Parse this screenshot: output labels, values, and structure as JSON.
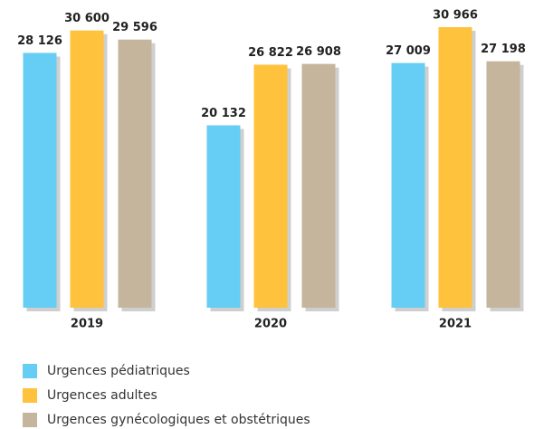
{
  "chart_data": {
    "type": "bar",
    "categories": [
      "2019",
      "2020",
      "2021"
    ],
    "series": [
      {
        "name": "Urgences pédiatriques",
        "color": "#66cef5",
        "values": [
          28126,
          20132,
          27009
        ],
        "value_labels": [
          "28 126",
          "20 132",
          "27 009"
        ]
      },
      {
        "name": "Urgences adultes",
        "color": "#ffc23c",
        "values": [
          30600,
          26822,
          30966
        ],
        "value_labels": [
          "30 600",
          "26 822",
          "30 966"
        ]
      },
      {
        "name": "Urgences gynécologiques et obstétriques",
        "color": "#c4b59c",
        "values": [
          29596,
          26908,
          27198
        ],
        "value_labels": [
          "29 596",
          "26 908",
          "27 198"
        ]
      }
    ],
    "legend": "bottom-left"
  }
}
